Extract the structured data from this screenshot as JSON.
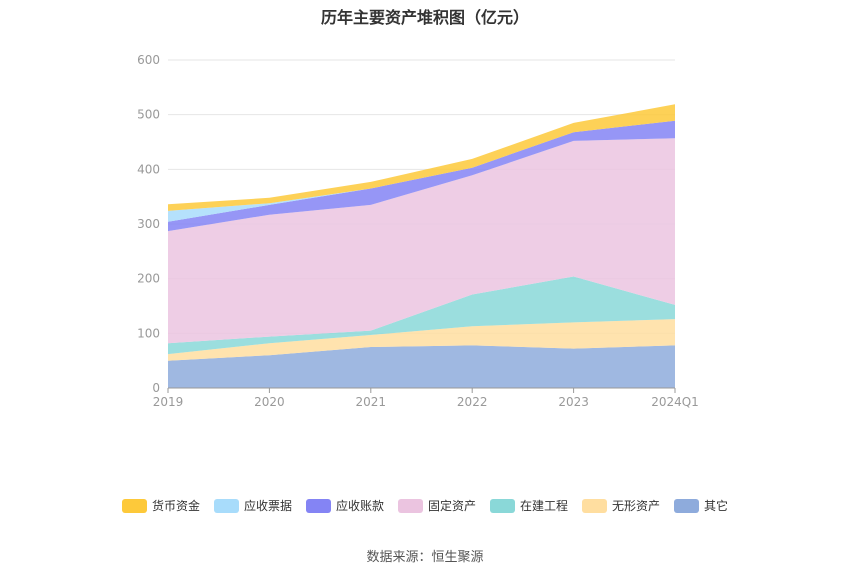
{
  "chart_data": {
    "type": "area",
    "stacked": true,
    "title": "历年主要资产堆积图（亿元）",
    "categories": [
      "2019",
      "2020",
      "2021",
      "2022",
      "2023",
      "2024Q1"
    ],
    "ylim": [
      0,
      600
    ],
    "yticks": [
      "0",
      "100",
      "200",
      "300",
      "400",
      "500",
      "600"
    ],
    "grid": true,
    "legend_position": "bottom",
    "series": [
      {
        "name": "其它",
        "color": "#8eabdc",
        "values": [
          50,
          60,
          75,
          78,
          72,
          78
        ]
      },
      {
        "name": "无形资产",
        "color": "#ffdea0",
        "values": [
          12,
          22,
          22,
          35,
          48,
          48
        ]
      },
      {
        "name": "在建工程",
        "color": "#8ad8d8",
        "values": [
          20,
          12,
          8,
          58,
          84,
          26
        ]
      },
      {
        "name": "固定资产",
        "color": "#ebc4e0",
        "values": [
          205,
          223,
          230,
          218,
          248,
          305
        ]
      },
      {
        "name": "应收账款",
        "color": "#8484f4",
        "values": [
          17,
          18,
          30,
          14,
          16,
          32
        ]
      },
      {
        "name": "应收票据",
        "color": "#a8dcfb",
        "values": [
          20,
          3,
          0,
          0,
          0,
          0
        ]
      },
      {
        "name": "货币资金",
        "color": "#fdc93a",
        "values": [
          12,
          10,
          12,
          16,
          17,
          30
        ]
      }
    ]
  },
  "legend_order": [
    "货币资金",
    "应收票据",
    "应收账款",
    "固定资产",
    "在建工程",
    "无形资产",
    "其它"
  ],
  "source": "数据来源：恒生聚源"
}
